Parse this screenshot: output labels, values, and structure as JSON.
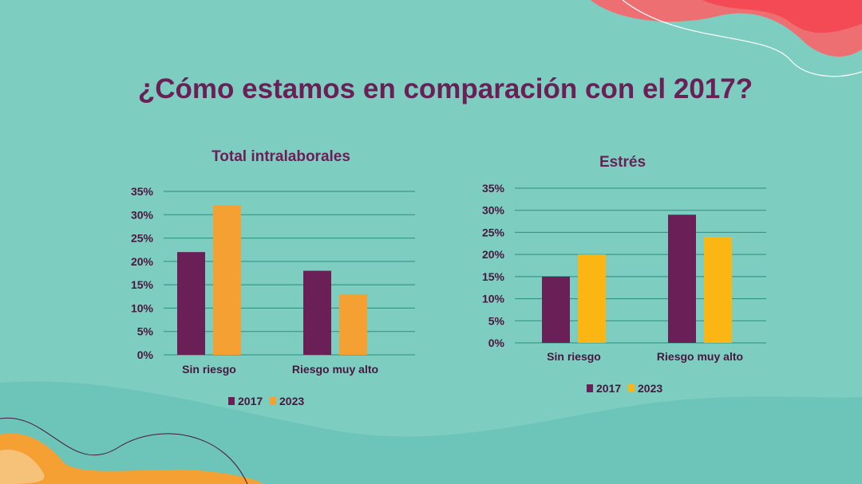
{
  "slide": {
    "title": "¿Cómo estamos en comparación con el 2017?"
  },
  "colors": {
    "background": "#7ecdc1",
    "accent": "#6b1f57",
    "bar_2017": "#6b1f57",
    "bar_2023_left": "#f4a032",
    "bar_2023_right": "#fcb614"
  },
  "chart_data": [
    {
      "type": "bar",
      "title": "Total intralaborales",
      "categories": [
        "Sin riesgo",
        "Riesgo muy alto"
      ],
      "series": [
        {
          "name": "2017",
          "values": [
            22,
            18
          ]
        },
        {
          "name": "2023",
          "values": [
            32,
            13
          ]
        }
      ],
      "ylim": [
        0,
        35
      ],
      "yticks": [
        "0%",
        "5%",
        "10%",
        "15%",
        "20%",
        "25%",
        "30%",
        "35%"
      ],
      "xlabel": "",
      "ylabel": "",
      "legend": "bottom"
    },
    {
      "type": "bar",
      "title": "Estrés",
      "categories": [
        "Sin riesgo",
        "Riesgo muy alto"
      ],
      "series": [
        {
          "name": "2017",
          "values": [
            15,
            29
          ]
        },
        {
          "name": "2023",
          "values": [
            20,
            24
          ]
        }
      ],
      "ylim": [
        0,
        35
      ],
      "yticks": [
        "0%",
        "5%",
        "10%",
        "15%",
        "20%",
        "25%",
        "30%",
        "35%"
      ],
      "xlabel": "",
      "ylabel": "",
      "legend": "bottom"
    }
  ]
}
